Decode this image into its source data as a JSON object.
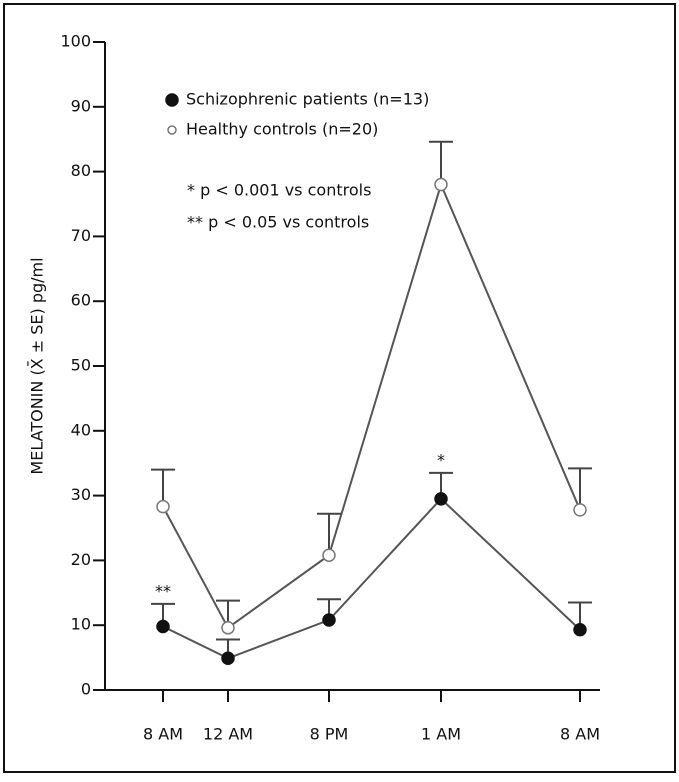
{
  "chart_data": {
    "type": "line",
    "y_label": "MELATONIN (X̄ ± SE) pg/ml",
    "categories": [
      "8 AM",
      "12 AM",
      "8  PM",
      "1 AM",
      "8 AM"
    ],
    "series": [
      {
        "name": "Schizophrenic patients (n=13)",
        "color": "#111111",
        "marker": "filled",
        "values": [
          9.8,
          4.9,
          10.8,
          29.5,
          9.3
        ],
        "errors": [
          3.5,
          2.9,
          3.2,
          4.0,
          4.2
        ],
        "significance": [
          "**",
          null,
          null,
          "*",
          null
        ]
      },
      {
        "name": "Healthy controls (n=20)",
        "color": "#777777",
        "marker": "open",
        "values": [
          28.3,
          9.6,
          20.8,
          78.0,
          27.8
        ],
        "errors": [
          5.7,
          4.2,
          6.4,
          6.6,
          6.4
        ]
      }
    ],
    "notes": [
      "* p < 0.001 vs controls",
      "** p < 0.05 vs controls"
    ],
    "ylim": [
      0,
      100
    ],
    "yticks": [
      0,
      10,
      20,
      30,
      40,
      50,
      60,
      70,
      80,
      90,
      100
    ]
  }
}
